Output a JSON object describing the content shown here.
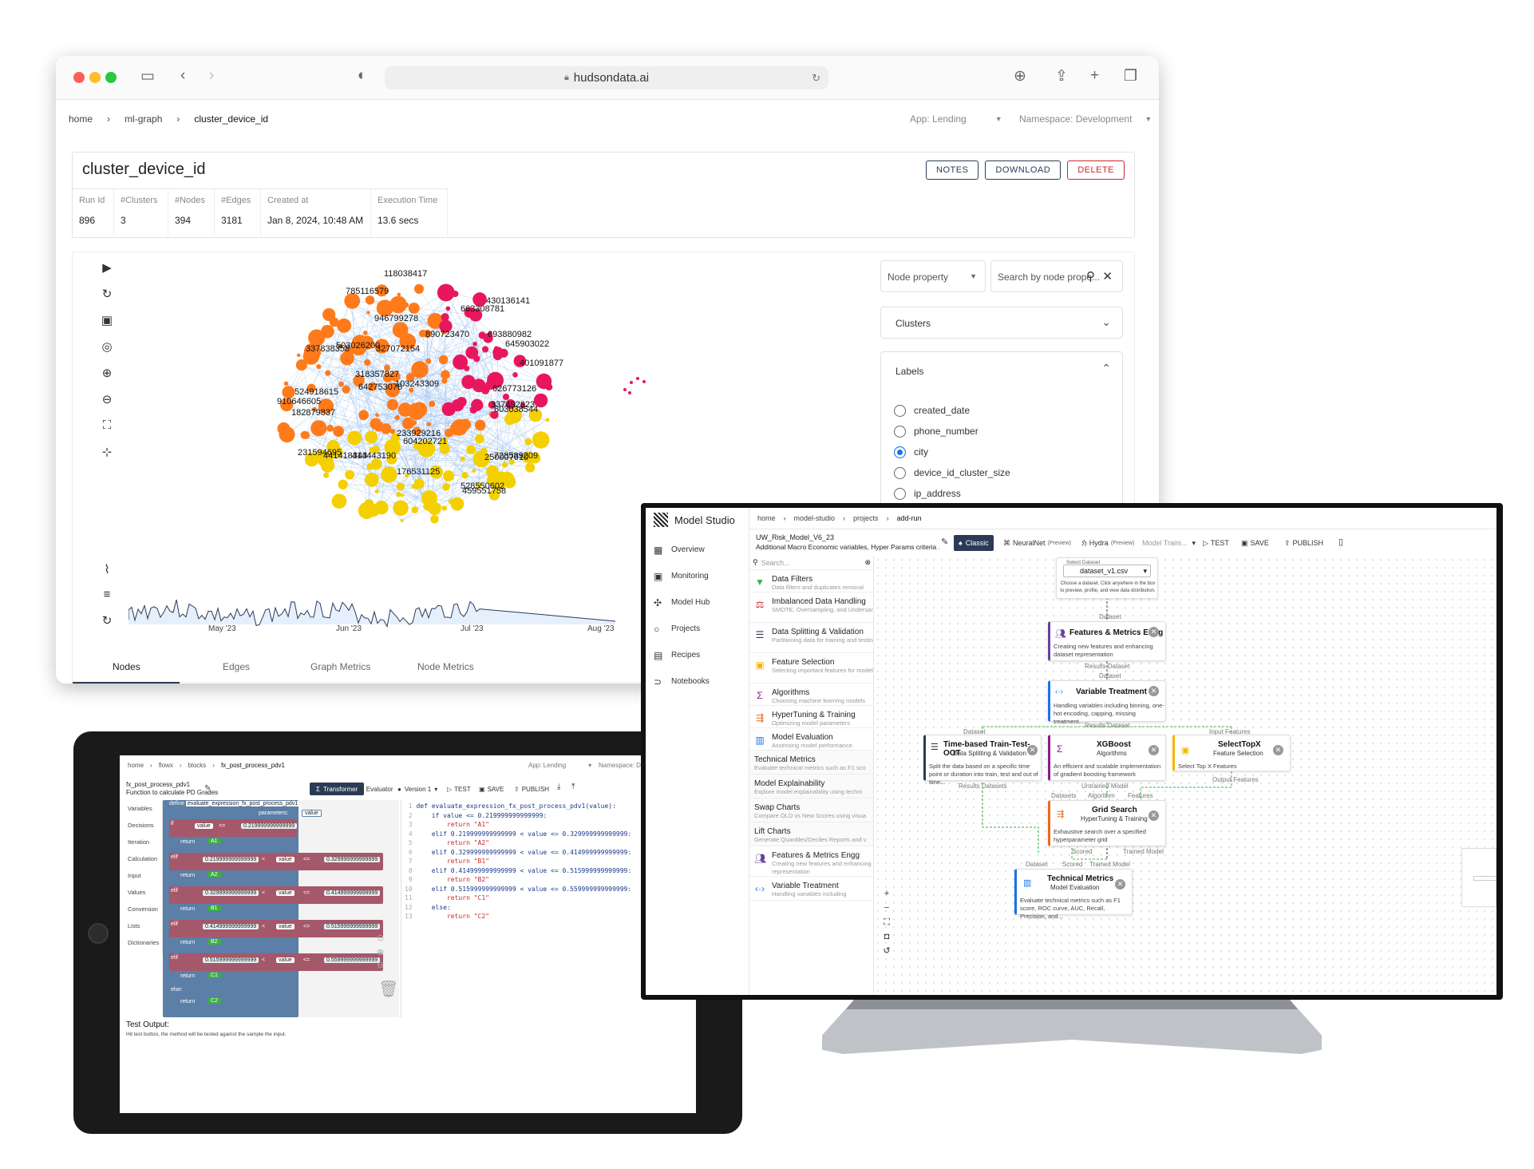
{
  "browser": {
    "url": "hudsondata.ai",
    "breadcrumb": [
      "home",
      "ml-graph",
      "cluster_device_id"
    ],
    "app_select": "App: Lending",
    "namespace_select": "Namespace: Development",
    "title": "cluster_device_id",
    "buttons": {
      "notes": "NOTES",
      "download": "DOWNLOAD",
      "delete": "DELETE"
    },
    "stats": [
      {
        "label": "Run Id",
        "value": "896"
      },
      {
        "label": "#Clusters",
        "value": "3"
      },
      {
        "label": "#Nodes",
        "value": "394"
      },
      {
        "label": "#Edges",
        "value": "3181"
      },
      {
        "label": "Created at",
        "value": "Jan 8, 2024, 10:48 AM"
      },
      {
        "label": "Execution Time",
        "value": "13.6 secs"
      }
    ],
    "node_property": "Node property",
    "search_placeholder": "Search by node prope...",
    "clusters_label": "Clusters",
    "labels_title": "Labels",
    "labels": [
      "created_date",
      "phone_number",
      "city",
      "device_id_cluster_size",
      "ip_address"
    ],
    "selected_label": "city",
    "graph_labels": [
      "118038417",
      "785116579",
      "430136141",
      "663308781",
      "946799278",
      "890723470",
      "693880982",
      "645903022",
      "337838358",
      "503026200",
      "327072154",
      "401091877",
      "318357827",
      "103243309",
      "524918615",
      "642753078",
      "626773126",
      "910646605",
      "337492623",
      "182879837",
      "603038544",
      "233929216",
      "604202721",
      "728589209",
      "231594695",
      "441418343",
      "414443190",
      "250007610",
      "176531125",
      "528550602",
      "459551758"
    ],
    "timeline_ticks": [
      "May '23",
      "Jun '23",
      "Jul '23",
      "Aug '23"
    ],
    "tabs": [
      "Nodes",
      "Edges",
      "Graph Metrics",
      "Node Metrics"
    ],
    "colors": {
      "hot": "#e8175d",
      "warm": "#ff7a1a",
      "yellow": "#f4d000",
      "edge": "#9cc2f0",
      "accent": "#1a73e8",
      "delete": "#c62828"
    }
  },
  "studio": {
    "app_name": "Model Studio",
    "breadcrumb": [
      "home",
      "model-studio",
      "projects",
      "add-run"
    ],
    "nav": [
      "Overview",
      "Monitoring",
      "Model Hub",
      "Projects",
      "Recipes",
      "Notebooks"
    ],
    "model_name": "UW_Risk_Model_V6_23",
    "model_desc": "Additional Macro Economic variables, Hyper Params criteria ...",
    "modes": {
      "classic": "Classic",
      "neuralnet": "NeuralNet",
      "neuralnet_tag": "(Preview)",
      "hydra": "Hydra",
      "hydra_tag": "(Preview)"
    },
    "mode_select": "Model Traini...",
    "actions": {
      "test": "TEST",
      "save": "SAVE",
      "publish": "PUBLISH"
    },
    "search_placeholder": "Search...",
    "palette": [
      {
        "title": "Data Filters",
        "sub": "Data filters and duplicates removal"
      },
      {
        "title": "Imbalanced Data Handling",
        "sub": "SMOTE, Oversampling, and Undersampling"
      },
      {
        "title": "Data Splitting & Validation",
        "sub": "Partitioning data for training and testing"
      },
      {
        "title": "Feature Selection",
        "sub": "Selecting important features for modeling"
      },
      {
        "title": "Algorithms",
        "sub": "Choosing machine learning models"
      },
      {
        "title": "HyperTuning & Training",
        "sub": "Optimizing model parameters"
      },
      {
        "title": "Model Evaluation",
        "sub": "Assessing model performance"
      },
      {
        "title": "Technical Metrics",
        "sub": "Evaluate technical metrics such as F1 sco"
      },
      {
        "title": "Model Explainability",
        "sub": "Explore model explainability using techni"
      },
      {
        "title": "Swap Charts",
        "sub": "Compare OLD vs New Scores using visua"
      },
      {
        "title": "Lift Charts",
        "sub": "Generate Quantiles/Deciles Reports and v"
      },
      {
        "title": "Features & Metrics Engg",
        "sub": "Creating new features and enhancing dataset representation"
      },
      {
        "title": "Variable Treatment",
        "sub": "Handling variables including"
      }
    ],
    "select_dataset": {
      "label": "Select Dataset",
      "value": "dataset_v1.csv",
      "help": "Choose a dataset. Click anywhere in the box to preview, profile, and view data distribution."
    },
    "nodes": {
      "features": {
        "title": "Features & Metrics Engg",
        "desc": "Creating new features and enhancing dataset representation"
      },
      "variable": {
        "title": "Variable Treatment",
        "desc": "Handling variables including binning, one-hot encoding, capping, missing treatment..."
      },
      "split": {
        "title": "Time-based Train-Test-OOT",
        "sub": "Data Splitting & Validation",
        "desc": "Split the data based on a specific time point or duration into train, test and out of time..."
      },
      "xgboost": {
        "title": "XGBoost",
        "sub": "Algorithms",
        "desc": "An efficient and scalable implementation of gradient boosting framework"
      },
      "selecttop": {
        "title": "SelectTopX",
        "sub": "Feature Selection",
        "desc": "Select Top X Features"
      },
      "grid": {
        "title": "Grid Search",
        "sub": "HyperTuning & Training",
        "desc": "Exhaustive search over a specified hyperparameter grid"
      },
      "metrics": {
        "title": "Technical Metrics",
        "sub": "Model Evaluation",
        "desc": "Evaluate technical metrics such as F1 score, ROC curve, AUC, Recall, Precision, and..."
      }
    },
    "ports": {
      "dataset": "Dataset",
      "results_dataset": "Results Dataset",
      "input_features": "Input Features",
      "results_datasets": "Results Datasets",
      "untrained_model": "Untrained Model",
      "output_features": "Output Features",
      "datasets": "Datasets",
      "algorithm": "Algorithm",
      "features": "Features",
      "scored": "Scored",
      "trained_model": "Trained Model"
    }
  },
  "blocks": {
    "breadcrumb": [
      "home",
      "flowx",
      "blocks",
      "fx_post_process_pdv1"
    ],
    "app_select": "App: Lending",
    "namespace_select": "Namespace: Development",
    "name": "fx_post_process_pdv1",
    "desc": "Function to calculate PD Grades",
    "tabs": {
      "transformer": "Transformer",
      "evaluator": "Evaluator",
      "version": "Version 1"
    },
    "actions": {
      "test": "TEST",
      "save": "SAVE",
      "publish": "PUBLISH"
    },
    "categories": [
      "Variables",
      "Decisions",
      "Iteration",
      "Calculation",
      "Input",
      "Values",
      "Conversion",
      "Lists",
      "Dictionaries"
    ],
    "define": "define",
    "func_name": "evaluate_expression_fx_post_process_pdv1",
    "parameters": "parameters:",
    "param": "value",
    "if": "if",
    "elif": "elif",
    "else": "else:",
    "return": "return",
    "thresholds": [
      "0.219999999999999",
      "0.329999999999999",
      "0.414999999999999",
      "0.515999999999999",
      "0.559999999999999"
    ],
    "grades": [
      "A1",
      "A2",
      "B1",
      "B2",
      "C1",
      "C2"
    ],
    "code_lines": [
      "def evaluate_expression_fx_post_process_pdv1(value):",
      "    if value <= 0.219999999999999:",
      "        return \"A1\"",
      "    elif 0.219999999999999 < value <= 0.329999999999999:",
      "        return \"A2\"",
      "    elif 0.329999999999999 < value <= 0.414999999999999:",
      "        return \"B1\"",
      "    elif 0.414999999999999 < value <= 0.515999999999999:",
      "        return \"B2\"",
      "    elif 0.515999999999999 < value <= 0.559999999999999:",
      "        return \"C1\"",
      "    else:",
      "        return \"C2\""
    ],
    "test_output": "Test Output:",
    "test_hint": "Hit test button, the method will be tested against the sample the input."
  }
}
